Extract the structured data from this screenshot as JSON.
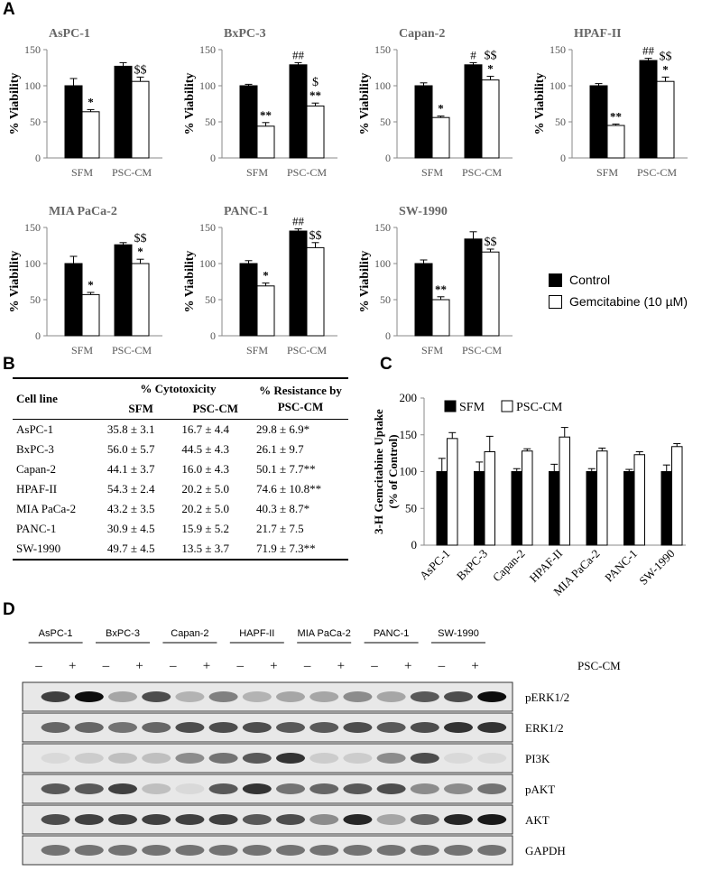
{
  "panel_labels": {
    "a": "A",
    "b": "B",
    "c": "C",
    "d": "D"
  },
  "colors": {
    "control": "#000000",
    "gemcitabine": "#ffffff"
  },
  "chart_data": [
    {
      "type": "bar",
      "title": "AsPC-1",
      "ylabel": "% Viability",
      "ylim": [
        0,
        150
      ],
      "categories": [
        "SFM",
        "PSC-CM"
      ],
      "series": [
        {
          "name": "Control",
          "values": [
            100,
            127
          ],
          "errors": [
            10,
            5
          ]
        },
        {
          "name": "Gemcitabine (10 µM)",
          "values": [
            64,
            106
          ],
          "errors": [
            3,
            6
          ]
        }
      ],
      "annotations": {
        "Control": [
          "",
          ""
        ],
        "Gemcitabine (10 µM)": [
          "*",
          "$$"
        ]
      }
    },
    {
      "type": "bar",
      "title": "BxPC-3",
      "ylabel": "% Viability",
      "ylim": [
        0,
        150
      ],
      "categories": [
        "SFM",
        "PSC-CM"
      ],
      "series": [
        {
          "name": "Control",
          "values": [
            100,
            129
          ],
          "errors": [
            2,
            3
          ]
        },
        {
          "name": "Gemcitabine (10 µM)",
          "values": [
            44,
            72
          ],
          "errors": [
            5,
            4
          ]
        }
      ],
      "annotations": {
        "Control": [
          "",
          "##"
        ],
        "Gemcitabine (10 µM)": [
          "**",
          "$\n**"
        ]
      }
    },
    {
      "type": "bar",
      "title": "Capan-2",
      "ylabel": "% Viability",
      "ylim": [
        0,
        150
      ],
      "categories": [
        "SFM",
        "PSC-CM"
      ],
      "series": [
        {
          "name": "Control",
          "values": [
            100,
            129
          ],
          "errors": [
            4,
            3
          ]
        },
        {
          "name": "Gemcitabine (10 µM)",
          "values": [
            56,
            108
          ],
          "errors": [
            2,
            5
          ]
        }
      ],
      "annotations": {
        "Control": [
          "",
          "#"
        ],
        "Gemcitabine (10 µM)": [
          "*",
          "$$\n*"
        ]
      }
    },
    {
      "type": "bar",
      "title": "HPAF-II",
      "ylabel": "% Viability",
      "ylim": [
        0,
        150
      ],
      "categories": [
        "SFM",
        "PSC-CM"
      ],
      "series": [
        {
          "name": "Control",
          "values": [
            100,
            135
          ],
          "errors": [
            3,
            3
          ]
        },
        {
          "name": "Gemcitabine (10 µM)",
          "values": [
            45,
            106
          ],
          "errors": [
            2,
            6
          ]
        }
      ],
      "annotations": {
        "Control": [
          "",
          "##"
        ],
        "Gemcitabine (10 µM)": [
          "**",
          "$$\n*"
        ]
      }
    },
    {
      "type": "bar",
      "title": "MIA PaCa-2",
      "ylabel": "% Viability",
      "ylim": [
        0,
        150
      ],
      "categories": [
        "SFM",
        "PSC-CM"
      ],
      "series": [
        {
          "name": "Control",
          "values": [
            100,
            126
          ],
          "errors": [
            10,
            3
          ]
        },
        {
          "name": "Gemcitabine (10 µM)",
          "values": [
            57,
            100
          ],
          "errors": [
            3,
            6
          ]
        }
      ],
      "annotations": {
        "Control": [
          "",
          ""
        ],
        "Gemcitabine (10 µM)": [
          "*",
          "$$\n*"
        ]
      }
    },
    {
      "type": "bar",
      "title": "PANC-1",
      "ylabel": "% Viability",
      "ylim": [
        0,
        150
      ],
      "categories": [
        "SFM",
        "PSC-CM"
      ],
      "series": [
        {
          "name": "Control",
          "values": [
            100,
            145
          ],
          "errors": [
            4,
            3
          ]
        },
        {
          "name": "Gemcitabine (10 µM)",
          "values": [
            69,
            122
          ],
          "errors": [
            4,
            7
          ]
        }
      ],
      "annotations": {
        "Control": [
          "",
          "##"
        ],
        "Gemcitabine (10 µM)": [
          "*",
          "$$"
        ]
      }
    },
    {
      "type": "bar",
      "title": "SW-1990",
      "ylabel": "% Viability",
      "ylim": [
        0,
        150
      ],
      "categories": [
        "SFM",
        "PSC-CM"
      ],
      "series": [
        {
          "name": "Control",
          "values": [
            100,
            134
          ],
          "errors": [
            5,
            10
          ]
        },
        {
          "name": "Gemcitabine (10 µM)",
          "values": [
            50,
            116
          ],
          "errors": [
            4,
            4
          ]
        }
      ],
      "annotations": {
        "Control": [
          "",
          ""
        ],
        "Gemcitabine (10 µM)": [
          "**",
          "$$"
        ]
      }
    },
    {
      "type": "table",
      "columns": [
        "Cell line",
        "% Cytotoxicity",
        "% Resistance by PSC-CM"
      ],
      "subcolumns": [
        "SFM",
        "PSC-CM"
      ],
      "rows": [
        [
          "AsPC-1",
          "35.8 ± 3.1",
          "16.7 ± 4.4",
          "29.8 ± 6.9*"
        ],
        [
          "BxPC-3",
          "56.0 ± 5.7",
          "44.5 ± 4.3",
          "26.1 ± 9.7"
        ],
        [
          "Capan-2",
          "44.1 ± 3.7",
          "16.0 ± 4.3",
          "50.1 ± 7.7**"
        ],
        [
          "HPAF-II",
          "54.3 ± 2.4",
          "20.2 ± 5.0",
          "74.6 ± 10.8**"
        ],
        [
          "MIA PaCa-2",
          "43.2 ± 3.5",
          "20.2 ± 5.0",
          "40.3 ± 8.7*"
        ],
        [
          "PANC-1",
          "30.9 ± 4.5",
          "15.9 ± 5.2",
          "21.7 ± 7.5"
        ],
        [
          "SW-1990",
          "49.7 ± 4.5",
          "13.5 ± 3.7",
          "71.9 ± 7.3**"
        ]
      ]
    },
    {
      "type": "bar",
      "ylabel": "3-H Gemcitabine Uptake (% of Control)",
      "ylim": [
        0,
        200
      ],
      "yticks": [
        0,
        50,
        100,
        150,
        200
      ],
      "categories": [
        "AsPC-1",
        "BxPC-3",
        "Capan-2",
        "HPAF-II",
        "MIA PaCa-2",
        "PANC-1",
        "SW-1990"
      ],
      "series": [
        {
          "name": "SFM",
          "values": [
            100,
            100,
            100,
            100,
            100,
            100,
            100
          ],
          "errors": [
            18,
            13,
            4,
            10,
            4,
            3,
            9
          ]
        },
        {
          "name": "PSC-CM",
          "values": [
            145,
            127,
            128,
            147,
            128,
            123,
            134
          ],
          "errors": [
            8,
            21,
            3,
            13,
            4,
            4,
            4
          ]
        }
      ]
    }
  ],
  "legendA": {
    "control": "Control",
    "gem": "Gemcitabine (10 µM)"
  },
  "panelA_yticks": [
    0,
    50,
    100,
    150
  ],
  "western": {
    "cell_lines": [
      "AsPC-1",
      "BxPC-3",
      "Capan-2",
      "HAPF-II",
      "MIA PaCa-2",
      "PANC-1",
      "SW-1990"
    ],
    "treatment_label": "PSC-CM",
    "minus": "–",
    "plus": "+",
    "blots": [
      "pERK1/2",
      "ERK1/2",
      "PI3K",
      "pAKT",
      "AKT",
      "GAPDH"
    ]
  }
}
